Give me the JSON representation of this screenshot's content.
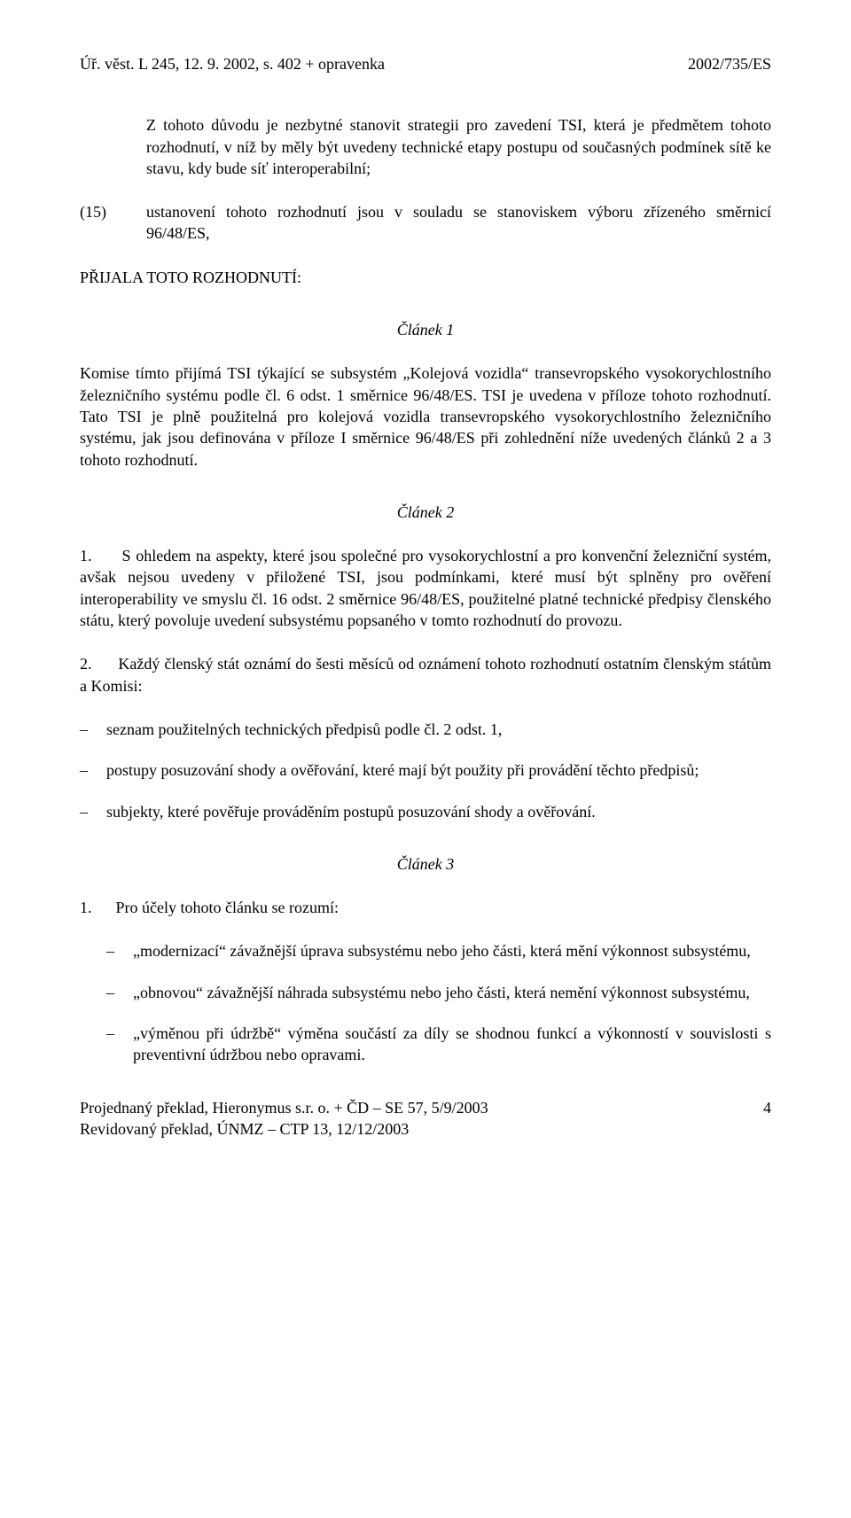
{
  "header": {
    "left": "Úř. věst. L 245, 12. 9. 2002, s. 402 + opravenka",
    "right": "2002/735/ES"
  },
  "para_indent_1": "Z tohoto důvodu je nezbytné stanovit strategii pro zavedení TSI, která je předmětem tohoto rozhodnutí, v níž by měly být uvedeny technické etapy postupu od současných podmínek sítě ke stavu, kdy bude síť interoperabilní;",
  "item15": {
    "num": "(15)",
    "text": "ustanovení tohoto rozhodnutí jsou v souladu se stanoviskem výboru zřízeného směrnicí 96/48/ES,"
  },
  "adopted": "PŘIJALA TOTO ROZHODNUTÍ:",
  "article1": {
    "heading": "Článek 1",
    "body": "Komise tímto přijímá TSI týkající se subsystém „Kolejová vozidla“ transevropského vysokorychlostního železničního systému podle čl. 6 odst. 1 směrnice 96/48/ES. TSI je uvedena v příloze tohoto rozhodnutí. Tato TSI je plně použitelná pro kolejová vozidla transevropského vysokorychlostního železničního systému, jak jsou definována v příloze I směrnice 96/48/ES při zohlednění níže uvedených článků 2 a 3 tohoto rozhodnutí."
  },
  "article2": {
    "heading": "Článek 2",
    "p1": "1.      S ohledem na aspekty, které jsou společné pro vysokorychlostní a pro konvenční železniční systém, avšak nejsou uvedeny v přiložené TSI, jsou podmínkami, které musí být splněny pro ověření interoperability ve smyslu čl. 16 odst. 2 směrnice 96/48/ES, použitelné platné technické předpisy členského státu, který povoluje uvedení subsystému popsaného v tomto rozhodnutí do provozu.",
    "p2": "2.      Každý členský stát oznámí do šesti měsíců od oznámení tohoto rozhodnutí ostatním členským státům a Komisi:",
    "li1": "seznam použitelných technických předpisů podle čl. 2 odst. 1,",
    "li2": "postupy posuzování shody a ověřování, které mají být použity při provádění těchto předpisů;",
    "li3": "subjekty, které pověřuje prováděním postupů posuzování shody a ověřování."
  },
  "article3": {
    "heading": "Článek 3",
    "p1": "1.      Pro účely tohoto článku se rozumí:",
    "li1": "„modernizací“ závažnější úprava subsystému nebo jeho části, která mění výkonnost subsystému,",
    "li2": "„obnovou“ závažnější náhrada subsystému nebo jeho části, která nemění výkonnost subsystému,",
    "li3": "„výměnou při údržbě“ výměna součástí za díly se shodnou funkcí a výkonností v souvislosti s preventivní údržbou nebo opravami."
  },
  "footer": {
    "line1": "Projednaný překlad, Hieronymus s.r. o. + ČD – SE 57, 5/9/2003",
    "line2": "Revidovaný překlad, ÚNMZ – CTP 13, 12/12/2003",
    "page": "4"
  }
}
